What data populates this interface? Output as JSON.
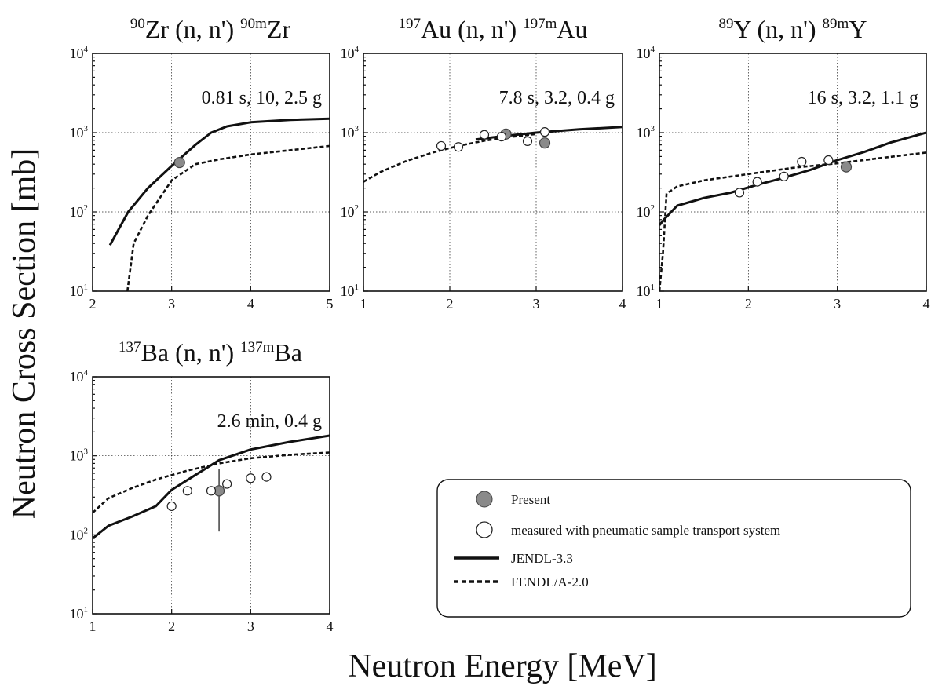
{
  "figure": {
    "xlabel": "Neutron Energy [MeV]",
    "ylabel": "Neutron Cross Section [mb]"
  },
  "legend": {
    "entries": [
      {
        "label": "Present",
        "marker": "filled-circle"
      },
      {
        "label": "measured with pneumatic sample transport system",
        "marker": "open-circle"
      },
      {
        "label": "JENDL-3.3",
        "marker": "solid-line"
      },
      {
        "label": "FENDL/A-2.0",
        "marker": "dashed-line"
      }
    ]
  },
  "colors": {
    "present_fill": "#8a8a8a",
    "line": "#111111",
    "background": "#ffffff"
  },
  "chart_data": [
    {
      "type": "line",
      "title_parts": {
        "a1": "90",
        "s1": "Zr (n, n')",
        "a2": "90m",
        "s2": "Zr"
      },
      "annotation": "0.81 s, 10, 2.5 g",
      "xlim": [
        2,
        5
      ],
      "ylim": [
        10,
        10000
      ],
      "yscale": "log",
      "xticks": [
        2,
        3,
        4,
        5
      ],
      "grid": true,
      "series": [
        {
          "name": "JENDL-3.3",
          "style": "solid",
          "x": [
            2.22,
            2.45,
            2.7,
            3.0,
            3.3,
            3.5,
            3.7,
            4.0,
            4.5,
            5.0
          ],
          "y": [
            38,
            100,
            200,
            380,
            700,
            1000,
            1200,
            1350,
            1450,
            1500
          ]
        },
        {
          "name": "FENDL/A-2.0",
          "style": "dashed",
          "x": [
            2.44,
            2.52,
            2.7,
            3.0,
            3.3,
            3.6,
            4.0,
            4.5,
            5.0
          ],
          "y": [
            10,
            40,
            90,
            250,
            400,
            460,
            530,
            600,
            680
          ]
        },
        {
          "name": "Present",
          "style": "filled",
          "points": [
            {
              "x": 3.1,
              "y": 420
            }
          ]
        },
        {
          "name": "measured with pneumatic sample transport system",
          "style": "open",
          "points": []
        }
      ]
    },
    {
      "type": "line",
      "title_parts": {
        "a1": "197",
        "s1": "Au (n, n')",
        "a2": "197m",
        "s2": "Au"
      },
      "annotation": "7.8 s, 3.2, 0.4 g",
      "xlim": [
        1,
        4
      ],
      "ylim": [
        10,
        10000
      ],
      "yscale": "log",
      "xticks": [
        1,
        2,
        3,
        4
      ],
      "grid": true,
      "series": [
        {
          "name": "JENDL-3.3",
          "style": "solid",
          "x": [
            2.3,
            2.6,
            3.0,
            3.5,
            4.0
          ],
          "y": [
            820,
            900,
            1000,
            1100,
            1180
          ]
        },
        {
          "name": "FENDL/A-2.0",
          "style": "dashed",
          "x": [
            1.0,
            1.2,
            1.5,
            1.8,
            2.1,
            2.4,
            2.7,
            3.0
          ],
          "y": [
            240,
            320,
            440,
            560,
            680,
            790,
            880,
            960
          ]
        },
        {
          "name": "Present",
          "style": "filled",
          "points": [
            {
              "x": 2.65,
              "y": 960
            },
            {
              "x": 3.1,
              "y": 740
            }
          ]
        },
        {
          "name": "measured with pneumatic sample transport system",
          "style": "open",
          "points": [
            {
              "x": 1.9,
              "y": 680
            },
            {
              "x": 2.1,
              "y": 660
            },
            {
              "x": 2.4,
              "y": 940
            },
            {
              "x": 2.6,
              "y": 890
            },
            {
              "x": 2.9,
              "y": 780
            },
            {
              "x": 3.1,
              "y": 1020
            }
          ]
        }
      ]
    },
    {
      "type": "line",
      "title_parts": {
        "a1": "89",
        "s1": "Y (n, n')",
        "a2": "89m",
        "s2": "Y"
      },
      "annotation": "16 s, 3.2, 1.1 g",
      "xlim": [
        1,
        4
      ],
      "ylim": [
        10,
        10000
      ],
      "yscale": "log",
      "xticks": [
        1,
        2,
        3,
        4
      ],
      "grid": true,
      "series": [
        {
          "name": "JENDL-3.3",
          "style": "solid",
          "x": [
            1.0,
            1.05,
            1.2,
            1.5,
            1.8,
            2.1,
            2.4,
            2.7,
            3.0,
            3.3,
            3.6,
            4.0
          ],
          "y": [
            68,
            80,
            120,
            150,
            175,
            220,
            270,
            340,
            450,
            570,
            750,
            1000
          ]
        },
        {
          "name": "FENDL/A-2.0",
          "style": "dashed",
          "x": [
            1.0,
            1.04,
            1.08,
            1.2,
            1.5,
            2.0,
            2.5,
            3.0,
            3.5,
            4.0
          ],
          "y": [
            10,
            30,
            170,
            210,
            250,
            300,
            360,
            410,
            480,
            560
          ]
        },
        {
          "name": "Present",
          "style": "filled",
          "points": [
            {
              "x": 3.1,
              "y": 370
            }
          ]
        },
        {
          "name": "measured with pneumatic sample transport system",
          "style": "open",
          "points": [
            {
              "x": 1.9,
              "y": 175
            },
            {
              "x": 2.1,
              "y": 240
            },
            {
              "x": 2.4,
              "y": 280
            },
            {
              "x": 2.6,
              "y": 430
            },
            {
              "x": 2.9,
              "y": 450
            }
          ]
        }
      ]
    },
    {
      "type": "line",
      "title_parts": {
        "a1": "137",
        "s1": "Ba (n, n')",
        "a2": "137m",
        "s2": "Ba"
      },
      "annotation": "2.6 min, 0.4 g",
      "xlim": [
        1,
        4
      ],
      "ylim": [
        10,
        10000
      ],
      "yscale": "log",
      "xticks": [
        1,
        2,
        3,
        4
      ],
      "grid": true,
      "series": [
        {
          "name": "JENDL-3.3",
          "style": "solid",
          "x": [
            1.0,
            1.2,
            1.5,
            1.8,
            2.0,
            2.3,
            2.6,
            3.0,
            3.5,
            4.0
          ],
          "y": [
            90,
            130,
            170,
            230,
            370,
            570,
            880,
            1200,
            1500,
            1800
          ]
        },
        {
          "name": "FENDL/A-2.0",
          "style": "dashed",
          "x": [
            1.0,
            1.2,
            1.5,
            1.8,
            2.2,
            2.6,
            3.0,
            3.5,
            4.0
          ],
          "y": [
            190,
            290,
            390,
            500,
            650,
            800,
            930,
            1030,
            1100
          ]
        },
        {
          "name": "Present",
          "style": "filled",
          "points": [
            {
              "x": 2.6,
              "y": 360,
              "ymin": 110,
              "ymax": 680
            }
          ]
        },
        {
          "name": "measured with pneumatic sample transport system",
          "style": "open",
          "points": [
            {
              "x": 2.0,
              "y": 230
            },
            {
              "x": 2.2,
              "y": 360
            },
            {
              "x": 2.5,
              "y": 360
            },
            {
              "x": 2.7,
              "y": 440
            },
            {
              "x": 3.0,
              "y": 520
            },
            {
              "x": 3.2,
              "y": 540
            }
          ]
        }
      ]
    }
  ]
}
